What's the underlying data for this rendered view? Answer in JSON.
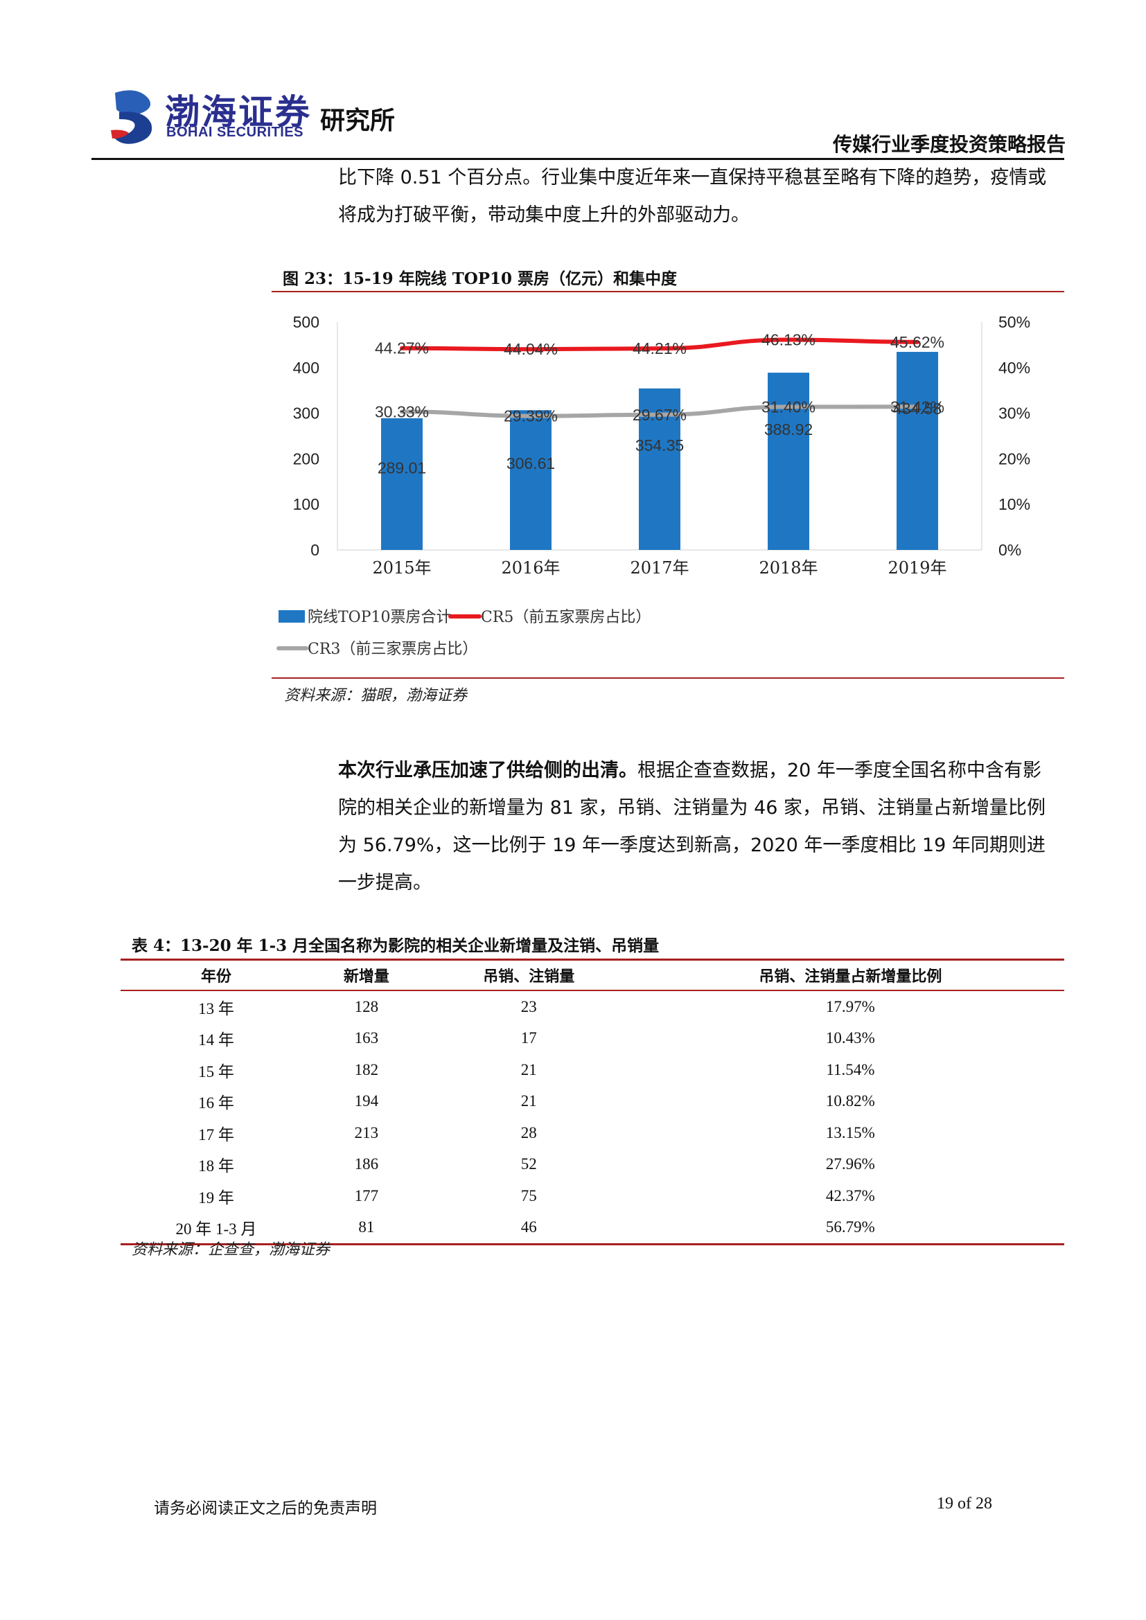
{
  "header": {
    "logo_cn": "渤海证券",
    "logo_en": "BOHAI SECURITIES",
    "institute": "研究所",
    "report_title": "传媒行业季度投资策略报告"
  },
  "paragraph1": "比下降 0.51 个百分点。行业集中度近年来一直保持平稳甚至略有下降的趋势，疫情或将成为打破平衡，带动集中度上升的外部驱动力。",
  "figure": {
    "title": "图 23：15-19 年院线 TOP10 票房（亿元）和集中度",
    "source": "资料来源：猫眼，渤海证券"
  },
  "chart_data": {
    "type": "bar",
    "categories": [
      "2015年",
      "2016年",
      "2017年",
      "2018年",
      "2019年"
    ],
    "series": [
      {
        "name": "院线TOP10票房合计",
        "type": "bar",
        "axis": "left",
        "values": [
          289.01,
          306.61,
          354.35,
          388.92,
          434.58
        ],
        "labels": [
          "289.01",
          "306.61",
          "354.35",
          "388.92",
          "434.58"
        ],
        "color": "#1f77c4"
      },
      {
        "name": "CR5（前五家票房占比）",
        "type": "line",
        "axis": "right",
        "values": [
          44.27,
          44.04,
          44.21,
          46.13,
          45.62
        ],
        "labels": [
          "44.27%",
          "44.04%",
          "44.21%",
          "46.13%",
          "45.62%"
        ],
        "color": "#e8191f"
      },
      {
        "name": "CR3（前三家票房占比）",
        "type": "line",
        "axis": "right",
        "values": [
          30.33,
          29.39,
          29.67,
          31.4,
          31.42
        ],
        "labels": [
          "30.33%",
          "29.39%",
          "29.67%",
          "31.40%",
          "31.42%"
        ],
        "color": "#a6a6a6"
      }
    ],
    "y_left": {
      "ticks": [
        "0",
        "100",
        "200",
        "300",
        "400",
        "500"
      ],
      "range": [
        0,
        500
      ]
    },
    "y_right": {
      "ticks": [
        "0%",
        "10%",
        "20%",
        "30%",
        "40%",
        "50%"
      ],
      "range": [
        0,
        50
      ]
    },
    "grid": false,
    "legend_placement": "bottom"
  },
  "paragraph2": {
    "lead": "本次行业承压加速了供给侧的出清。",
    "body": "根据企查查数据，20 年一季度全国名称中含有影院的相关企业的新增量为 81 家，吊销、注销量为 46 家，吊销、注销量占新增量比例为 56.79%，这一比例于 19 年一季度达到新高，2020 年一季度相比 19 年同期则进一步提高。"
  },
  "table": {
    "title": "表 4：13-20 年 1-3 月全国名称为影院的相关企业新增量及注销、吊销量",
    "headers": [
      "年份",
      "新增量",
      "吊销、注销量",
      "吊销、注销量占新增量比例"
    ],
    "rows": [
      [
        "13 年",
        "128",
        "23",
        "17.97%"
      ],
      [
        "14 年",
        "163",
        "17",
        "10.43%"
      ],
      [
        "15 年",
        "182",
        "21",
        "11.54%"
      ],
      [
        "16 年",
        "194",
        "21",
        "10.82%"
      ],
      [
        "17 年",
        "213",
        "28",
        "13.15%"
      ],
      [
        "18 年",
        "186",
        "52",
        "27.96%"
      ],
      [
        "19 年",
        "177",
        "75",
        "42.37%"
      ],
      [
        "20 年 1-3 月",
        "81",
        "46",
        "56.79%"
      ]
    ],
    "source": "资料来源：企查查，渤海证券"
  },
  "footer": {
    "disclaimer": "请务必阅读正文之后的免责声明",
    "page": "19 of 28"
  }
}
